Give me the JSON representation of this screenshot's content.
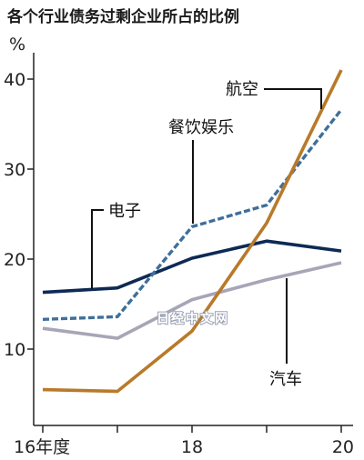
{
  "chart_data": {
    "type": "line",
    "title": "各个行业债务过剩企业所占的比例",
    "unit": "%",
    "x": [
      2016,
      2017,
      2018,
      2019,
      2020
    ],
    "x_tick_labels": [
      "16年度",
      "18",
      "20"
    ],
    "xlim": [
      2016,
      2020
    ],
    "y_ticks": [
      10,
      20,
      30,
      40
    ],
    "ylim": [
      2,
      42
    ],
    "series": [
      {
        "name": "电子",
        "values": [
          16.3,
          16.8,
          20.1,
          22.0,
          20.9
        ],
        "color": "#0d2a55",
        "dash": false
      },
      {
        "name": "餐饮娱乐",
        "values": [
          13.3,
          13.6,
          23.6,
          26.0,
          36.6
        ],
        "color": "#3f6f9a",
        "dash": true
      },
      {
        "name": "航空",
        "values": [
          5.5,
          5.3,
          12.0,
          24.0,
          41.0
        ],
        "color": "#b87a2a",
        "dash": false
      },
      {
        "name": "汽车",
        "values": [
          12.3,
          11.2,
          15.5,
          17.7,
          19.6
        ],
        "color": "#a7a6b7",
        "dash": false
      }
    ]
  },
  "watermark": "日经中文网"
}
